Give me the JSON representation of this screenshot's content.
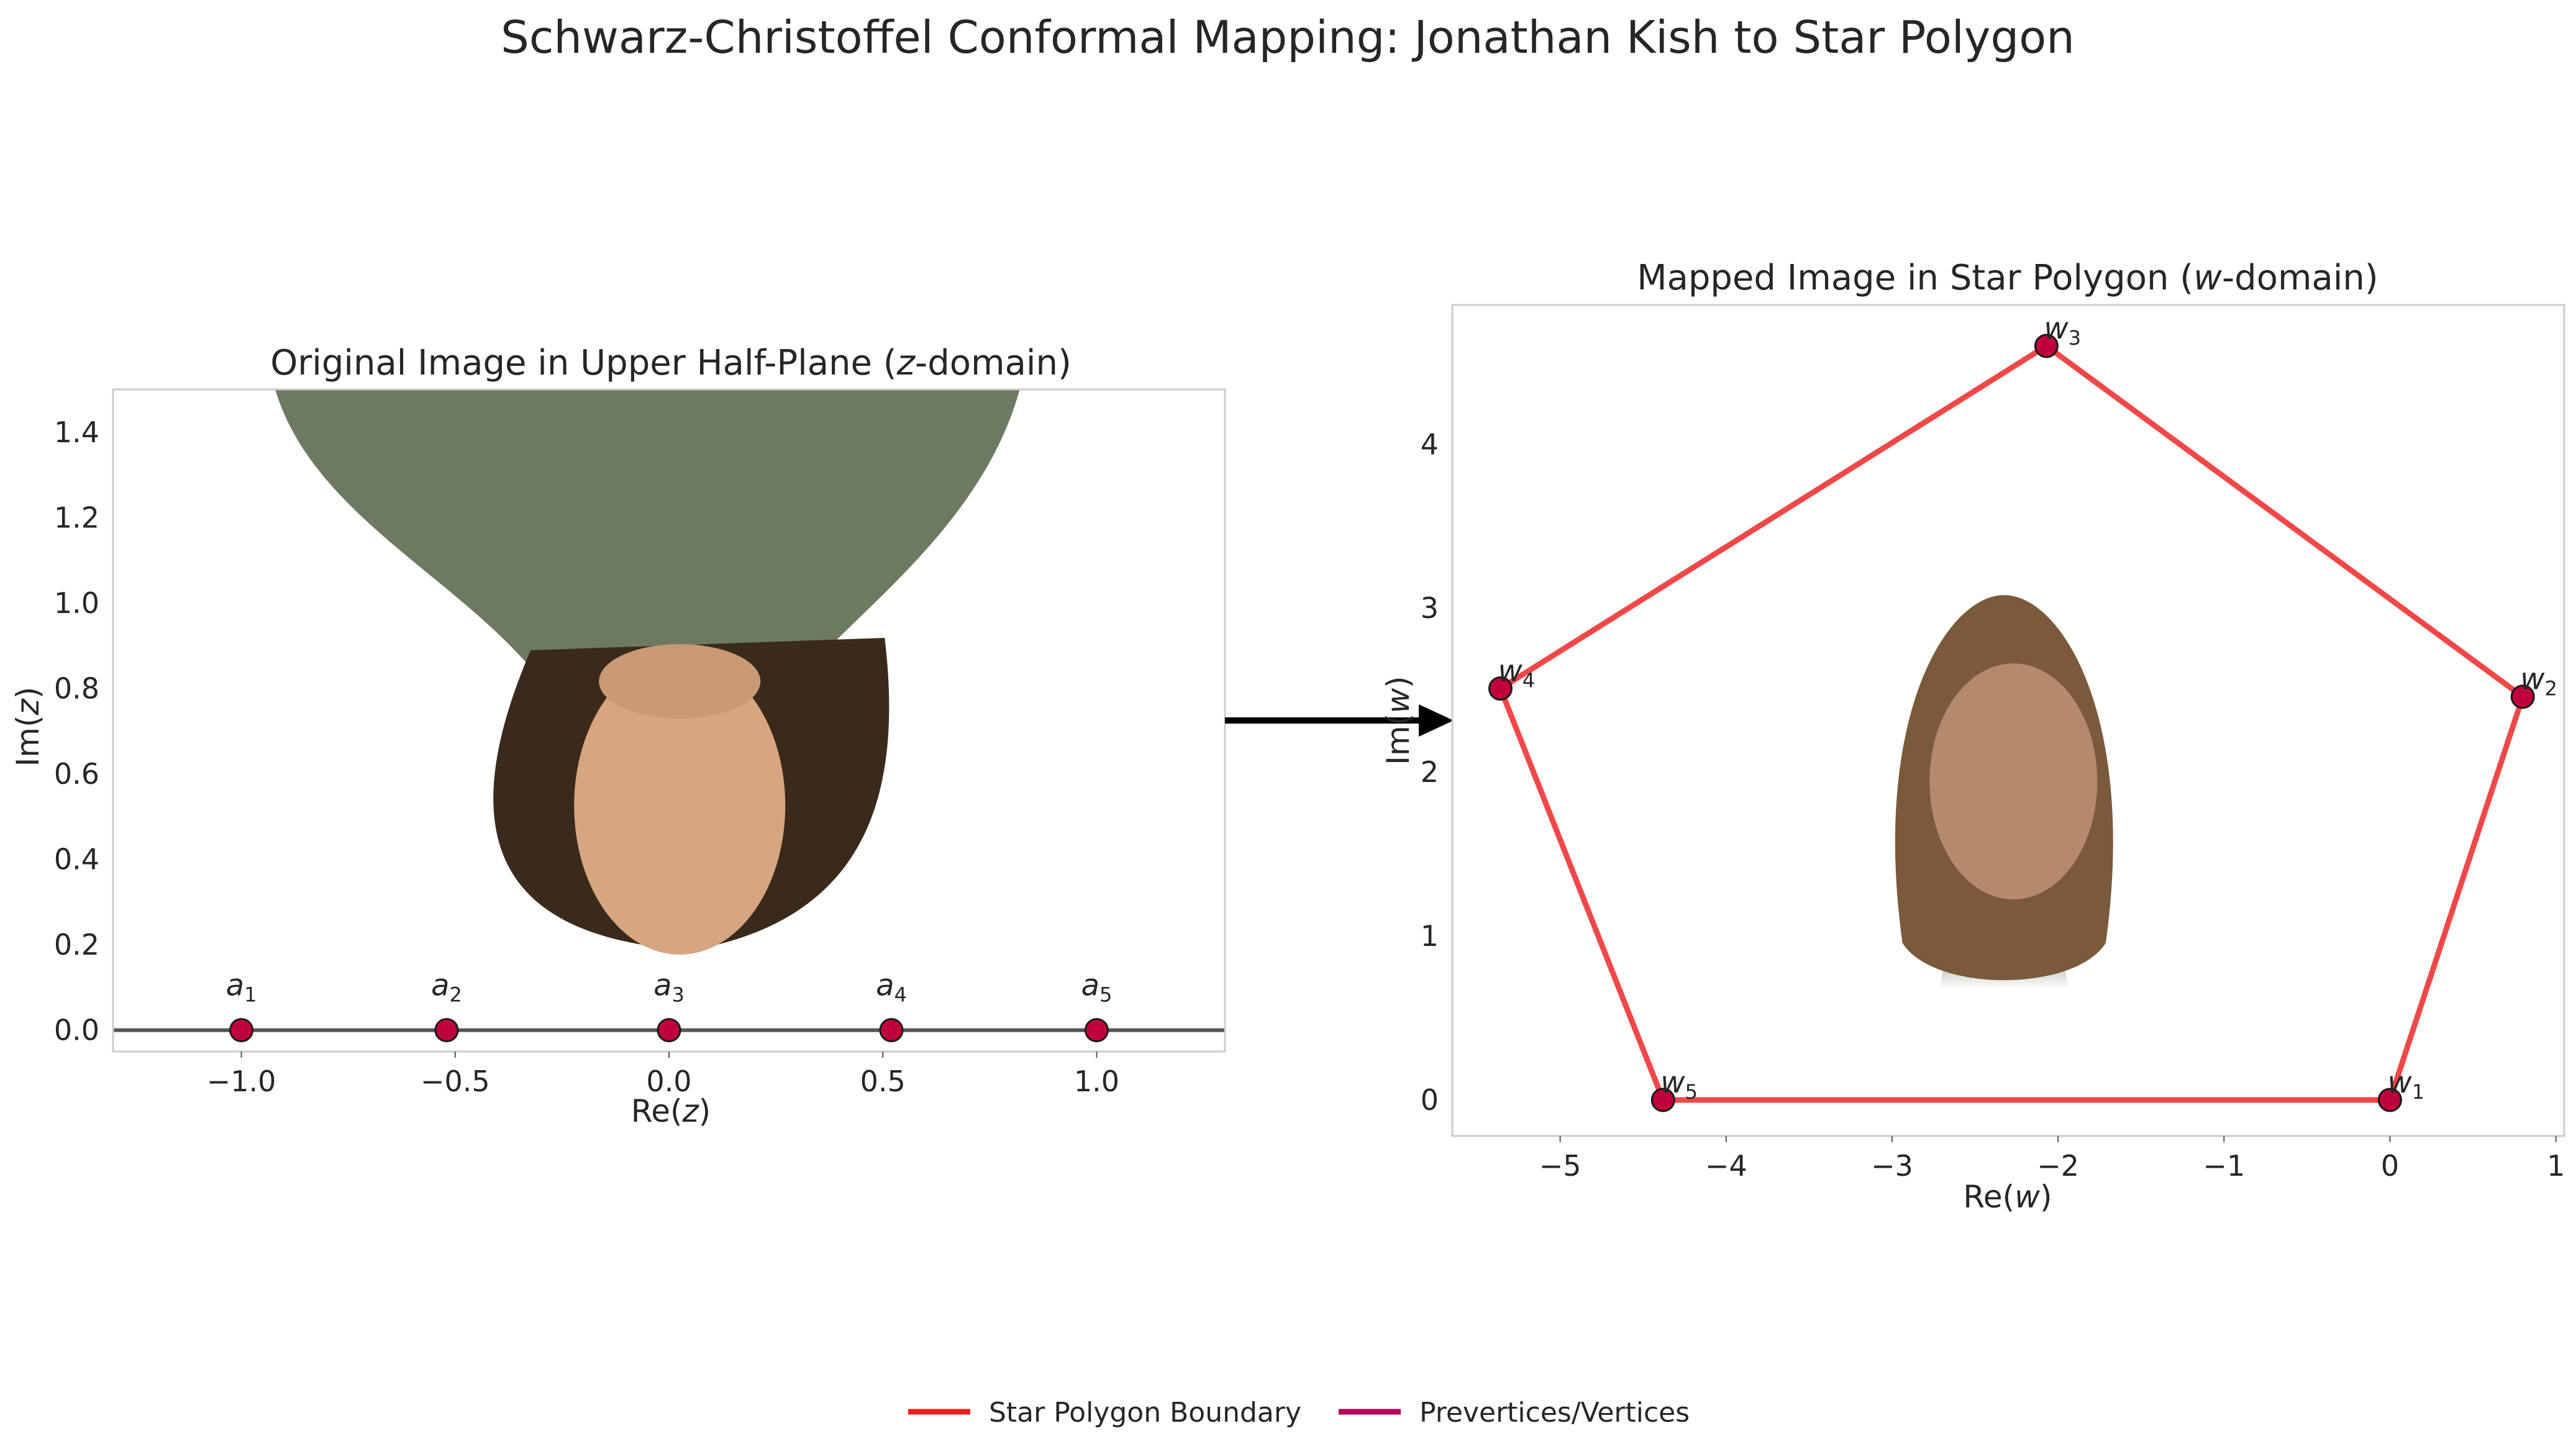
{
  "figure": {
    "title": "Schwarz-Christoffel Conformal Mapping: Jonathan Kish to Star Polygon"
  },
  "chart_data": [
    {
      "type": "scatter",
      "title": "Original Image in Upper Half-Plane (z-domain)",
      "title_parts": {
        "before": "Original Image in Upper Half-Plane (",
        "var": "z",
        "after": "-domain)"
      },
      "xlabel": "Re(z)",
      "xlabel_parts": {
        "before": "Re(",
        "var": "z",
        "after": ")"
      },
      "ylabel": "Im(z)",
      "ylabel_parts": {
        "before": "Im(",
        "var": "z",
        "after": ")"
      },
      "xlim": [
        -1.3,
        1.3
      ],
      "ylim": [
        -0.05,
        1.5
      ],
      "xticks": [
        -1.0,
        -0.5,
        0.0,
        0.5,
        1.0
      ],
      "xtick_labels": [
        "−1.0",
        "−0.5",
        "0.0",
        "0.5",
        "1.0"
      ],
      "yticks": [
        0.0,
        0.2,
        0.4,
        0.6,
        0.8,
        1.0,
        1.2,
        1.4
      ],
      "ytick_labels": [
        "0.0",
        "0.2",
        "0.4",
        "0.6",
        "0.8",
        "1.0",
        "1.2",
        "1.4"
      ],
      "grid": false,
      "real_axis_line": {
        "y": 0,
        "color": "#555555"
      },
      "points": [
        {
          "x": -1.0,
          "y": 0,
          "label": "a",
          "sub": "1"
        },
        {
          "x": -0.52,
          "y": 0,
          "label": "a",
          "sub": "2"
        },
        {
          "x": 0.0,
          "y": 0,
          "label": "a",
          "sub": "3"
        },
        {
          "x": 0.52,
          "y": 0,
          "label": "a",
          "sub": "4"
        },
        {
          "x": 1.0,
          "y": 0,
          "label": "a",
          "sub": "5"
        }
      ],
      "image": {
        "description_icon": "upside-down-portrait",
        "x_range": [
          -0.95,
          0.82
        ],
        "y_range": [
          0.2,
          1.5
        ],
        "orientation": "inverted"
      }
    },
    {
      "type": "line",
      "title": "Mapped Image in Star Polygon (w-domain)",
      "title_parts": {
        "before": "Mapped Image in Star Polygon (",
        "var": "w",
        "after": "-domain)"
      },
      "xlabel": "Re(w)",
      "xlabel_parts": {
        "before": "Re(",
        "var": "w",
        "after": ")"
      },
      "ylabel": "Im(w)",
      "ylabel_parts": {
        "before": "Im(",
        "var": "w",
        "after": ")"
      },
      "xlim": [
        -5.65,
        1.05
      ],
      "ylim": [
        -0.22,
        4.85
      ],
      "xticks": [
        -5,
        -4,
        -3,
        -2,
        -1,
        0,
        1
      ],
      "xtick_labels": [
        "−5",
        "−4",
        "−3",
        "−2",
        "−1",
        "0",
        "1"
      ],
      "yticks": [
        0,
        1,
        2,
        3,
        4
      ],
      "ytick_labels": [
        "0",
        "1",
        "2",
        "3",
        "4"
      ],
      "grid": false,
      "polygon_color": "#f04848",
      "vertices": [
        {
          "x": 0.0,
          "y": 0.0,
          "label": "w",
          "sub": "1"
        },
        {
          "x": 0.8,
          "y": 2.46,
          "label": "w",
          "sub": "2"
        },
        {
          "x": -2.07,
          "y": 4.6,
          "label": "w",
          "sub": "3"
        },
        {
          "x": -5.36,
          "y": 2.51,
          "label": "w",
          "sub": "4"
        },
        {
          "x": -4.38,
          "y": 0.0,
          "label": "w",
          "sub": "5"
        }
      ],
      "image": {
        "description_icon": "portrait",
        "x_range": [
          -3.05,
          -1.6
        ],
        "y_range": [
          0.68,
          3.08
        ],
        "orientation": "upright"
      }
    }
  ],
  "colors": {
    "vertex_fill": "#c0003a",
    "vertex_edge": "#1a1a1a",
    "polygon": "#f04848",
    "arrow": "#000000",
    "legend_polygon": "#e8211e",
    "legend_vertices": "#b3005a"
  },
  "legend": {
    "placement": "bottom-center",
    "items": [
      {
        "label": "Star Polygon Boundary",
        "color": "#e8211e"
      },
      {
        "label": "Prevertices/Vertices",
        "color": "#b3005a"
      }
    ]
  }
}
